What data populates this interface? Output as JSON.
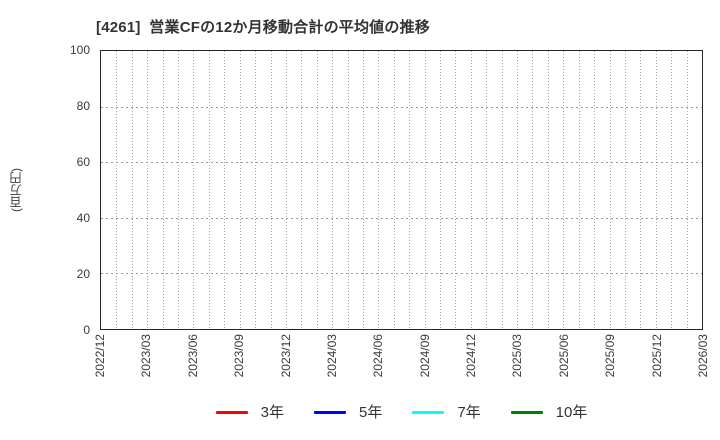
{
  "chart_data": {
    "type": "line",
    "title": "[4261]  営業CFの12か月移動合計の平均値の推移",
    "ylabel": "(百万円)",
    "xlabel": "",
    "categories": [
      "2022/12",
      "2023/03",
      "2023/06",
      "2023/09",
      "2023/12",
      "2024/03",
      "2024/06",
      "2024/09",
      "2024/12",
      "2025/03",
      "2025/06",
      "2025/09",
      "2025/12",
      "2026/03"
    ],
    "months_per_tick": 3,
    "ylim": [
      0,
      100
    ],
    "yticks": [
      0,
      20,
      40,
      60,
      80,
      100
    ],
    "grid": true,
    "legend_position": "bottom",
    "series": [
      {
        "name": "3年",
        "color": "#ff0000",
        "values": []
      },
      {
        "name": "5年",
        "color": "#0000ff",
        "values": []
      },
      {
        "name": "7年",
        "color": "#00ffff",
        "values": []
      },
      {
        "name": "10年",
        "color": "#008000",
        "values": []
      }
    ]
  },
  "colors": {
    "background": "#ffffff",
    "axis_spine": "#262626",
    "grid_vertical": "#ababab",
    "grid_horizontal": "#9a9a9a",
    "text": "#333333"
  }
}
